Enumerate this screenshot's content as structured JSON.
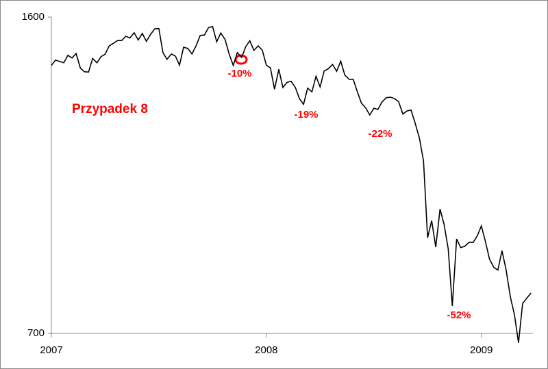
{
  "chart_data": {
    "type": "line",
    "log_scale": true,
    "color": "#000000",
    "x": [
      2007.0,
      2007.019,
      2007.038,
      2007.058,
      2007.077,
      2007.096,
      2007.115,
      2007.135,
      2007.154,
      2007.173,
      2007.192,
      2007.212,
      2007.231,
      2007.25,
      2007.269,
      2007.288,
      2007.308,
      2007.327,
      2007.346,
      2007.365,
      2007.385,
      2007.404,
      2007.423,
      2007.442,
      2007.462,
      2007.481,
      2007.5,
      2007.519,
      2007.538,
      2007.558,
      2007.577,
      2007.596,
      2007.615,
      2007.635,
      2007.654,
      2007.673,
      2007.692,
      2007.712,
      2007.731,
      2007.75,
      2007.769,
      2007.788,
      2007.808,
      2007.827,
      2007.846,
      2007.865,
      2007.885,
      2007.904,
      2007.923,
      2007.942,
      2007.962,
      2007.981,
      2008.0,
      2008.019,
      2008.038,
      2008.058,
      2008.077,
      2008.096,
      2008.115,
      2008.135,
      2008.154,
      2008.173,
      2008.192,
      2008.212,
      2008.231,
      2008.25,
      2008.269,
      2008.288,
      2008.308,
      2008.327,
      2008.346,
      2008.365,
      2008.385,
      2008.404,
      2008.423,
      2008.442,
      2008.462,
      2008.481,
      2008.5,
      2008.519,
      2008.538,
      2008.558,
      2008.577,
      2008.596,
      2008.615,
      2008.635,
      2008.654,
      2008.673,
      2008.692,
      2008.712,
      2008.731,
      2008.75,
      2008.769,
      2008.788,
      2008.808,
      2008.827,
      2008.846,
      2008.865,
      2008.885,
      2008.904,
      2008.923,
      2008.942,
      2008.962,
      2008.981,
      2009.0,
      2009.019,
      2009.038,
      2009.058,
      2009.077,
      2009.096,
      2009.115,
      2009.135,
      2009.154,
      2009.173,
      2009.192,
      2009.212,
      2009.231
    ],
    "values": [
      1410,
      1430,
      1425,
      1420,
      1448,
      1438,
      1455,
      1400,
      1387,
      1386,
      1436,
      1420,
      1443,
      1452,
      1484,
      1494,
      1505,
      1505,
      1522,
      1515,
      1536,
      1507,
      1533,
      1502,
      1530,
      1552,
      1553,
      1458,
      1433,
      1453,
      1445,
      1411,
      1479,
      1474,
      1453,
      1484,
      1525,
      1527,
      1557,
      1561,
      1500,
      1535,
      1509,
      1453,
      1410,
      1458,
      1440,
      1481,
      1504,
      1467,
      1484,
      1468,
      1411,
      1401,
      1325,
      1396,
      1331,
      1349,
      1353,
      1331,
      1293,
      1274,
      1329,
      1316,
      1371,
      1333,
      1390,
      1398,
      1414,
      1389,
      1426,
      1375,
      1360,
      1360,
      1317,
      1278,
      1262,
      1239,
      1261,
      1257,
      1282,
      1296,
      1298,
      1293,
      1283,
      1242,
      1252,
      1255,
      1213,
      1166,
      1099,
      899,
      940,
      877,
      969,
      930,
      873,
      752,
      896,
      876,
      879,
      888,
      888,
      903,
      927,
      890,
      850,
      832,
      826,
      869,
      827,
      770,
      735,
      683,
      757,
      768,
      778
    ],
    "xlim": [
      2007,
      2009.24
    ],
    "xticks": [
      2007,
      2008,
      2009
    ],
    "ylim": [
      700,
      1600
    ],
    "yticks": [
      700,
      1600
    ],
    "annotations": [
      "Przypadek 8",
      "-10%",
      "-19%",
      "-22%",
      "-52%"
    ]
  }
}
